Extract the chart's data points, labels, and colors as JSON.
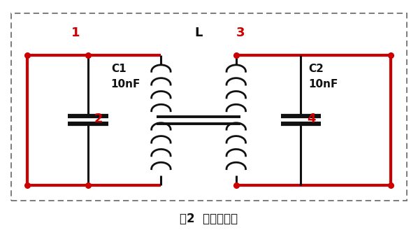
{
  "title": "图2  平行滤波器",
  "title_fontsize": 12,
  "bg_color": "#ffffff",
  "red": "#cc0000",
  "black": "#111111",
  "label_1": "1",
  "label_2": "2",
  "label_3": "3",
  "label_4": "4",
  "label_L": "L",
  "label_C1": "C1",
  "label_C1_val": "10nF",
  "label_C2": "C2",
  "label_C2_val": "10nF",
  "figw": 5.98,
  "figh": 3.29,
  "dpi": 100
}
